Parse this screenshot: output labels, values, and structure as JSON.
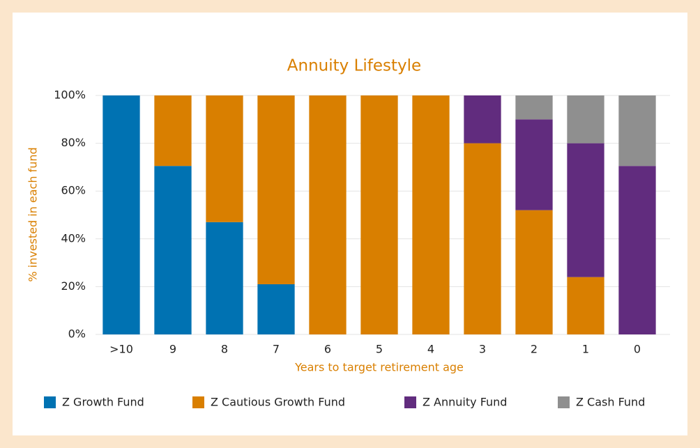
{
  "chart_data": {
    "type": "bar",
    "stacked": true,
    "title": "Annuity Lifestyle",
    "x_label": "Years to target retirement age",
    "y_label": "% invested in each fund",
    "categories": [
      ">10",
      "9",
      "8",
      "7",
      "6",
      "5",
      "4",
      "3",
      "2",
      "1",
      "0"
    ],
    "series": [
      {
        "name": "Z Growth Fund",
        "color": "#0072b2",
        "values": [
          100,
          70.5,
          47,
          21,
          0,
          0,
          0,
          0,
          0,
          0,
          0
        ]
      },
      {
        "name": "Z Cautious Growth Fund",
        "color": "#d97f00",
        "values": [
          0,
          29.5,
          53,
          79,
          100,
          100,
          100,
          80,
          52,
          24,
          0
        ]
      },
      {
        "name": "Z Annuity Fund",
        "color": "#612c7e",
        "values": [
          0,
          0,
          0,
          0,
          0,
          0,
          0,
          20,
          38,
          56,
          70.5
        ]
      },
      {
        "name": "Z Cash Fund",
        "color": "#8f8f8f",
        "values": [
          0,
          0,
          0,
          0,
          0,
          0,
          0,
          0,
          10,
          20,
          29.5
        ]
      }
    ],
    "ylim": [
      0,
      100
    ],
    "yticks": [
      {
        "value": 0,
        "label": "0%"
      },
      {
        "value": 20,
        "label": "20%"
      },
      {
        "value": 40,
        "label": "40%"
      },
      {
        "value": 60,
        "label": "60%"
      },
      {
        "value": 80,
        "label": "80%"
      },
      {
        "value": 100,
        "label": "100%"
      }
    ],
    "grid": true,
    "legend": "bottom"
  }
}
